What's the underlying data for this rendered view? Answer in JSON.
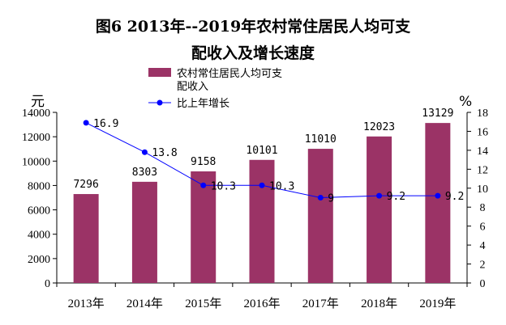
{
  "title_line1": "图6   2013年--2019年农村常住居民人均可支",
  "title_line2": "配收入及增长速度",
  "left_unit": "元",
  "right_unit": "%",
  "legend": {
    "bar_label_line1": "农村常住居民人均可支",
    "bar_label_line2": "配收入",
    "line_label": "比上年增长"
  },
  "colors": {
    "bar": "#9B3366",
    "line": "#0000FF"
  },
  "chart_data": {
    "type": "bar",
    "categories": [
      "2013年",
      "2014年",
      "2015年",
      "2016年",
      "2017年",
      "2018年",
      "2019年"
    ],
    "series": [
      {
        "name": "农村常住居民人均可支配收入",
        "type": "bar",
        "axis": "left",
        "values": [
          7296,
          8303,
          9158,
          10101,
          11010,
          12023,
          13129
        ],
        "labels": [
          "7296",
          "8303",
          "9158",
          "10101",
          "11010",
          "12023",
          "13129"
        ]
      },
      {
        "name": "比上年增长",
        "type": "line",
        "axis": "right",
        "values": [
          16.9,
          13.8,
          10.3,
          10.3,
          9.0,
          9.2,
          9.2
        ],
        "labels": [
          "16.9",
          "13.8",
          "10.3",
          "10.3",
          "9",
          "9.2",
          "9.2"
        ]
      }
    ],
    "y_left": {
      "min": 0,
      "max": 14000,
      "ticks": [
        "0",
        "2000",
        "4000",
        "6000",
        "8000",
        "10000",
        "12000",
        "14000"
      ]
    },
    "y_right": {
      "min": 0,
      "max": 18,
      "ticks": [
        "0",
        "2",
        "4",
        "6",
        "8",
        "10",
        "12",
        "14",
        "16",
        "18"
      ]
    },
    "grid": false,
    "legend_position": "top-center"
  }
}
